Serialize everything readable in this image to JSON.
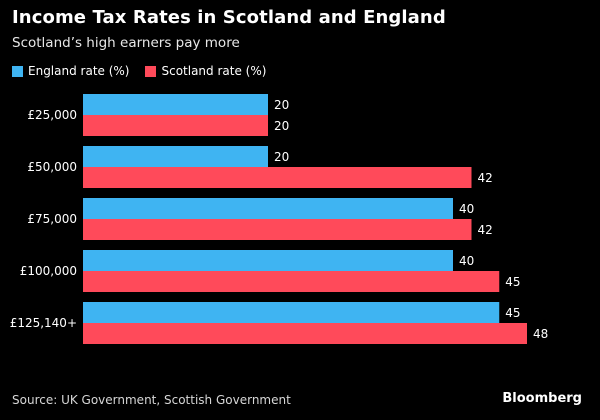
{
  "chart_data": {
    "type": "bar",
    "orientation": "horizontal",
    "title": "Income Tax Rates in Scotland and England",
    "subtitle": "Scotland’s high earners pay more",
    "categories": [
      "£25,000",
      "£50,000",
      "£75,000",
      "£100,000",
      "£125,140+"
    ],
    "series": [
      {
        "name": "England rate (%)",
        "color": "#3fb4f2",
        "values": [
          20,
          20,
          40,
          40,
          45
        ]
      },
      {
        "name": "Scotland rate (%)",
        "color": "#ff4a5a",
        "values": [
          20,
          42,
          42,
          45,
          48
        ]
      }
    ],
    "xlim": [
      0,
      50
    ],
    "xlabel": "",
    "ylabel": "",
    "grid": false,
    "legend": "top-left",
    "source": "Source: UK Government, Scottish Government",
    "brand": "Bloomberg"
  }
}
